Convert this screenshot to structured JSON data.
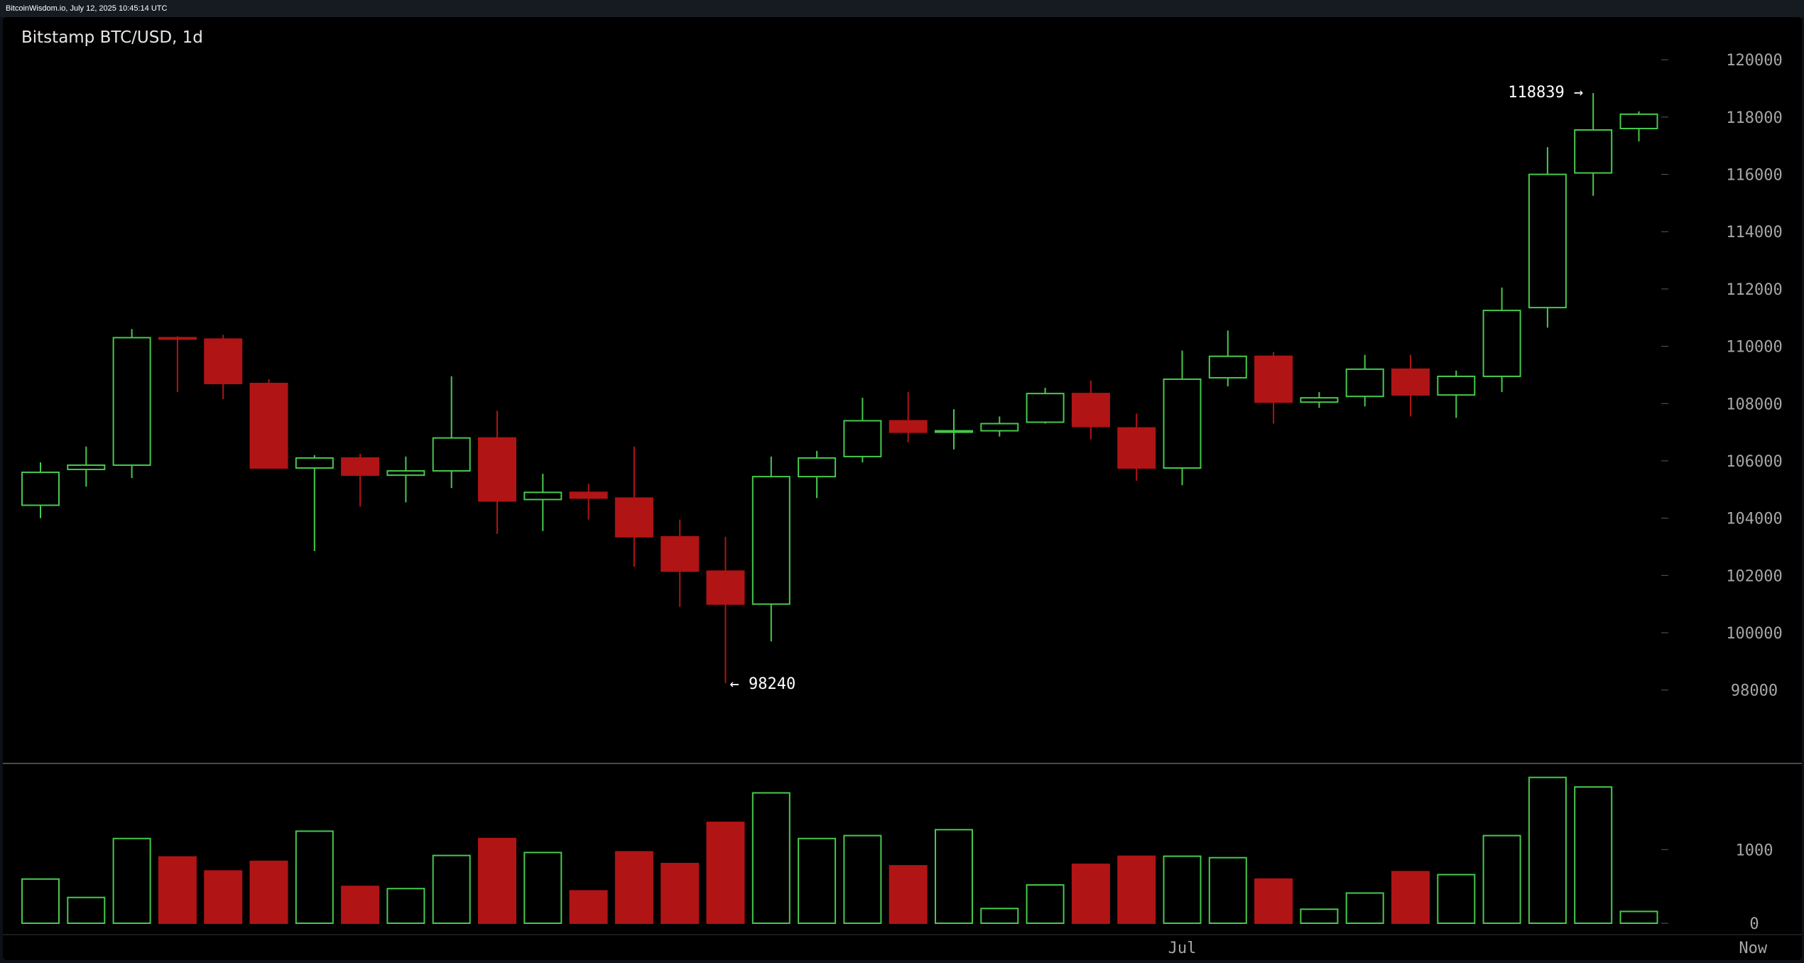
{
  "header": {
    "caption": "BitcoinWisdom.io, July 12, 2025 10:45:14 UTC"
  },
  "chart_data": {
    "type": "candlestick",
    "title": "Bitstamp BTC/USD, 1d",
    "price_axis": {
      "min": 97000,
      "max": 120500,
      "ticks": [
        98000,
        100000,
        102000,
        104000,
        106000,
        108000,
        110000,
        112000,
        114000,
        116000,
        118000,
        120000
      ]
    },
    "volume_axis": {
      "min": 0,
      "ticks": [
        0,
        1000
      ]
    },
    "x_labels": [
      {
        "text": "Jul",
        "index": 25
      },
      {
        "text": "Now",
        "index": 37.5
      }
    ],
    "annotations": {
      "high_label": "118839 →",
      "high_value": 118839,
      "high_index": 34,
      "low_label": "← 98240",
      "low_value": 98240,
      "low_index": 15
    },
    "colors": {
      "up": "#46c94c",
      "down": "#b01414",
      "axis_text": "#a6a6a6",
      "annotation_text": "#ffffff"
    },
    "candles": [
      {
        "o": 104450,
        "h": 105950,
        "l": 104000,
        "c": 105600,
        "v": 600
      },
      {
        "o": 105700,
        "h": 106500,
        "l": 105100,
        "c": 105850,
        "v": 350
      },
      {
        "o": 105850,
        "h": 110600,
        "l": 105400,
        "c": 110300,
        "v": 1150
      },
      {
        "o": 110300,
        "h": 110350,
        "l": 108400,
        "c": 110250,
        "v": 900
      },
      {
        "o": 110250,
        "h": 110400,
        "l": 108150,
        "c": 108700,
        "v": 710
      },
      {
        "o": 108700,
        "h": 108850,
        "l": 105750,
        "c": 105750,
        "v": 840
      },
      {
        "o": 105750,
        "h": 106200,
        "l": 102850,
        "c": 106100,
        "v": 1250
      },
      {
        "o": 106100,
        "h": 106250,
        "l": 104400,
        "c": 105500,
        "v": 500
      },
      {
        "o": 105500,
        "h": 106150,
        "l": 104550,
        "c": 105650,
        "v": 470
      },
      {
        "o": 105650,
        "h": 108950,
        "l": 105050,
        "c": 106800,
        "v": 920
      },
      {
        "o": 106800,
        "h": 107750,
        "l": 103450,
        "c": 104600,
        "v": 1150
      },
      {
        "o": 104650,
        "h": 105550,
        "l": 103550,
        "c": 104900,
        "v": 960
      },
      {
        "o": 104900,
        "h": 105200,
        "l": 103950,
        "c": 104700,
        "v": 440
      },
      {
        "o": 104700,
        "h": 106500,
        "l": 102300,
        "c": 103350,
        "v": 970
      },
      {
        "o": 103350,
        "h": 103950,
        "l": 100900,
        "c": 102150,
        "v": 810
      },
      {
        "o": 102150,
        "h": 103350,
        "l": 98240,
        "c": 101000,
        "v": 1370
      },
      {
        "o": 101000,
        "h": 106150,
        "l": 99700,
        "c": 105450,
        "v": 1770
      },
      {
        "o": 105450,
        "h": 106350,
        "l": 104700,
        "c": 106100,
        "v": 1150
      },
      {
        "o": 106150,
        "h": 108200,
        "l": 105950,
        "c": 107400,
        "v": 1190
      },
      {
        "o": 107400,
        "h": 108400,
        "l": 106650,
        "c": 107000,
        "v": 780
      },
      {
        "o": 107000,
        "h": 107800,
        "l": 106400,
        "c": 107050,
        "v": 1270
      },
      {
        "o": 107050,
        "h": 107550,
        "l": 106850,
        "c": 107300,
        "v": 200
      },
      {
        "o": 107350,
        "h": 108550,
        "l": 107300,
        "c": 108350,
        "v": 520
      },
      {
        "o": 108350,
        "h": 108800,
        "l": 106750,
        "c": 107200,
        "v": 800
      },
      {
        "o": 107150,
        "h": 107650,
        "l": 105300,
        "c": 105750,
        "v": 910
      },
      {
        "o": 105750,
        "h": 109850,
        "l": 105150,
        "c": 108850,
        "v": 910
      },
      {
        "o": 108900,
        "h": 110550,
        "l": 108600,
        "c": 109650,
        "v": 890
      },
      {
        "o": 109650,
        "h": 109800,
        "l": 107300,
        "c": 108050,
        "v": 600
      },
      {
        "o": 108050,
        "h": 108400,
        "l": 107850,
        "c": 108200,
        "v": 190
      },
      {
        "o": 108250,
        "h": 109700,
        "l": 107900,
        "c": 109200,
        "v": 410
      },
      {
        "o": 109200,
        "h": 109700,
        "l": 107550,
        "c": 108300,
        "v": 700
      },
      {
        "o": 108300,
        "h": 109150,
        "l": 107500,
        "c": 108950,
        "v": 660
      },
      {
        "o": 108950,
        "h": 112050,
        "l": 108400,
        "c": 111250,
        "v": 1190
      },
      {
        "o": 111350,
        "h": 116950,
        "l": 110650,
        "c": 116000,
        "v": 1980
      },
      {
        "o": 116050,
        "h": 118839,
        "l": 115250,
        "c": 117550,
        "v": 1850
      },
      {
        "o": 117600,
        "h": 118200,
        "l": 117150,
        "c": 118100,
        "v": 160
      }
    ]
  }
}
